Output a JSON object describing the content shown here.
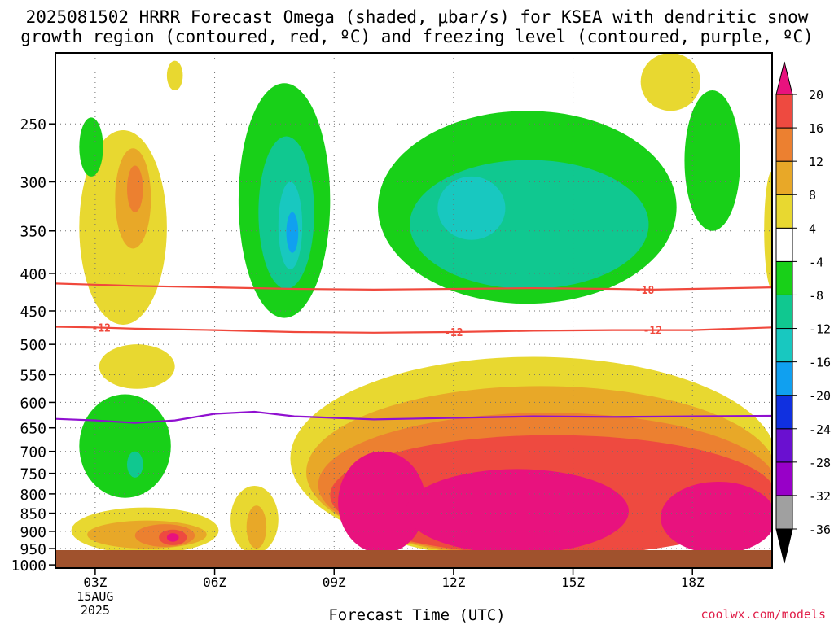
{
  "title_line1": "2025081502 HRRR Forecast Omega (shaded, μbar/s) for KSEA with dendritic snow",
  "title_line2": "growth region (contoured, red, ºC) and freezing level (contoured, purple, ºC)",
  "credit": "coolwx.com/models",
  "chart_data": {
    "type": "time-height contour",
    "xlabel": "Forecast Time (UTC)",
    "x_ticks": [
      {
        "t": 3,
        "label": "03Z",
        "sublabel": [
          "15AUG",
          "2025"
        ]
      },
      {
        "t": 6,
        "label": "06Z"
      },
      {
        "t": 9,
        "label": "09Z"
      },
      {
        "t": 12,
        "label": "12Z"
      },
      {
        "t": 15,
        "label": "15Z"
      },
      {
        "t": 18,
        "label": "18Z"
      }
    ],
    "xlim": [
      2,
      20
    ],
    "y_axis": "pressure (mb), log scale, inverted",
    "ylim": [
      1010,
      200
    ],
    "y_ticks": [
      250,
      300,
      350,
      400,
      450,
      500,
      550,
      600,
      650,
      700,
      750,
      800,
      850,
      900,
      950,
      1000
    ],
    "grid": true,
    "colorbar": {
      "levels": [
        "-36",
        "-32",
        "-28",
        "-24",
        "-20",
        "-16",
        "-12",
        "-8",
        "-4",
        "4",
        "8",
        "12",
        "16",
        "20"
      ],
      "colors": [
        "#000000",
        "#a0a0a0",
        "#9800c8",
        "#6a10d0",
        "#1030e0",
        "#10a0f0",
        "#18c8c0",
        "#10c890",
        "#18d018",
        "#ffffff",
        "#e8d830",
        "#e8a828",
        "#ec8030",
        "#ee4a40",
        "#e8127e"
      ],
      "placement": "right"
    },
    "omega_regions": [
      {
        "level": 4,
        "color": "#e8d830",
        "t": [
          2.6,
          4.8
        ],
        "p": [
          255,
          470
        ]
      },
      {
        "level": 8,
        "color": "#e8a828",
        "t": [
          3.5,
          4.4
        ],
        "p": [
          270,
          370
        ]
      },
      {
        "level": 12,
        "color": "#ec8030",
        "t": [
          3.8,
          4.2
        ],
        "p": [
          285,
          330
        ]
      },
      {
        "level": 4,
        "color": "#e8d830",
        "t": [
          4.8,
          5.2
        ],
        "p": [
          205,
          225
        ]
      },
      {
        "level": 4,
        "color": "#e8d830",
        "t": [
          16.7,
          18.2
        ],
        "p": [
          200,
          240
        ]
      },
      {
        "level": 4,
        "color": "#e8d830",
        "t": [
          19.8,
          20.2
        ],
        "p": [
          290,
          420
        ]
      },
      {
        "level": -4,
        "color": "#18d018",
        "t": [
          2.6,
          3.2
        ],
        "p": [
          245,
          295
        ]
      },
      {
        "level": -4,
        "color": "#18d018",
        "t": [
          6.6,
          8.9
        ],
        "p": [
          220,
          460
        ]
      },
      {
        "level": -8,
        "color": "#10c890",
        "t": [
          7.1,
          8.5
        ],
        "p": [
          260,
          420
        ]
      },
      {
        "level": -12,
        "color": "#18c8c0",
        "t": [
          7.6,
          8.2
        ],
        "p": [
          300,
          395
        ]
      },
      {
        "level": -16,
        "color": "#10a0f0",
        "t": [
          7.8,
          8.1
        ],
        "p": [
          330,
          375
        ]
      },
      {
        "level": -4,
        "color": "#18d018",
        "t": [
          10.1,
          17.6
        ],
        "p": [
          240,
          440
        ]
      },
      {
        "level": -8,
        "color": "#10c890",
        "t": [
          10.9,
          16.9
        ],
        "p": [
          280,
          420
        ]
      },
      {
        "level": -12,
        "color": "#18c8c0",
        "t": [
          11.6,
          13.3
        ],
        "p": [
          295,
          360
        ]
      },
      {
        "level": -4,
        "color": "#18d018",
        "t": [
          17.8,
          19.2
        ],
        "p": [
          225,
          350
        ]
      },
      {
        "level": 4,
        "color": "#e8d830",
        "t": [
          3.1,
          5.0
        ],
        "p": [
          500,
          575
        ]
      },
      {
        "level": -4,
        "color": "#18d018",
        "t": [
          2.6,
          4.9
        ],
        "p": [
          585,
          810
        ]
      },
      {
        "level": -8,
        "color": "#10c890",
        "t": [
          3.8,
          4.2
        ],
        "p": [
          700,
          760
        ]
      },
      {
        "level": 4,
        "color": "#e8d830",
        "t": [
          2.4,
          6.1
        ],
        "p": [
          835,
          965
        ]
      },
      {
        "level": 8,
        "color": "#e8a828",
        "t": [
          2.8,
          5.8
        ],
        "p": [
          870,
          950
        ]
      },
      {
        "level": 12,
        "color": "#ec8030",
        "t": [
          4.0,
          5.5
        ],
        "p": [
          880,
          945
        ]
      },
      {
        "level": 16,
        "color": "#ee4a40",
        "t": [
          4.6,
          5.3
        ],
        "p": [
          895,
          940
        ]
      },
      {
        "level": 20,
        "color": "#e8127e",
        "t": [
          4.8,
          5.1
        ],
        "p": [
          905,
          930
        ]
      },
      {
        "level": 4,
        "color": "#e8d830",
        "t": [
          6.4,
          7.6
        ],
        "p": [
          780,
          965
        ]
      },
      {
        "level": 8,
        "color": "#e8a828",
        "t": [
          6.8,
          7.3
        ],
        "p": [
          830,
          950
        ]
      },
      {
        "level": 4,
        "color": "#e8d830",
        "t": [
          7.9,
          20.1
        ],
        "p": [
          520,
          985
        ]
      },
      {
        "level": 8,
        "color": "#e8a828",
        "t": [
          8.3,
          20.1
        ],
        "p": [
          570,
          980
        ]
      },
      {
        "level": 12,
        "color": "#ec8030",
        "t": [
          8.6,
          20.1
        ],
        "p": [
          620,
          975
        ]
      },
      {
        "level": 16,
        "color": "#ee4a40",
        "t": [
          8.9,
          20.1
        ],
        "p": [
          665,
          970
        ]
      },
      {
        "level": 20,
        "color": "#e8127e",
        "t": [
          9.1,
          11.3
        ],
        "p": [
          700,
          965
        ]
      },
      {
        "level": 20,
        "color": "#e8127e",
        "t": [
          10.8,
          16.4
        ],
        "p": [
          740,
          965
        ]
      },
      {
        "level": 20,
        "color": "#e8127e",
        "t": [
          17.2,
          20.1
        ],
        "p": [
          770,
          965
        ]
      }
    ],
    "contours": [
      {
        "name": "-18",
        "color": "#f0483c",
        "label_t": 16.8,
        "label": "-18",
        "points": [
          [
            2,
            413
          ],
          [
            4,
            416
          ],
          [
            6,
            418
          ],
          [
            8,
            420
          ],
          [
            10,
            421
          ],
          [
            12,
            420
          ],
          [
            14,
            419
          ],
          [
            16,
            420
          ],
          [
            17,
            421
          ],
          [
            18,
            420
          ],
          [
            20,
            418
          ]
        ]
      },
      {
        "name": "-12",
        "color": "#f0483c",
        "label_t": 12,
        "label": "-12",
        "points": [
          [
            2,
            473
          ],
          [
            3,
            474
          ],
          [
            4,
            476
          ],
          [
            6,
            478
          ],
          [
            8,
            481
          ],
          [
            10,
            482
          ],
          [
            12,
            481
          ],
          [
            14,
            479
          ],
          [
            16,
            478
          ],
          [
            18,
            478
          ],
          [
            20,
            474
          ]
        ]
      },
      {
        "name": "freezing level",
        "color": "#9010d0",
        "points": [
          [
            2,
            632
          ],
          [
            3,
            635
          ],
          [
            4,
            640
          ],
          [
            5,
            635
          ],
          [
            6,
            622
          ],
          [
            7,
            618
          ],
          [
            8,
            627
          ],
          [
            10,
            633
          ],
          [
            12,
            630
          ],
          [
            14,
            627
          ],
          [
            16,
            628
          ],
          [
            18,
            627
          ],
          [
            20,
            626
          ]
        ]
      }
    ],
    "extra_labels": [
      {
        "t": 3.15,
        "p": 474,
        "text": "-12"
      },
      {
        "t": 17.0,
        "p": 478,
        "text": "-12"
      }
    ],
    "terrain_color": "#a0522d"
  }
}
